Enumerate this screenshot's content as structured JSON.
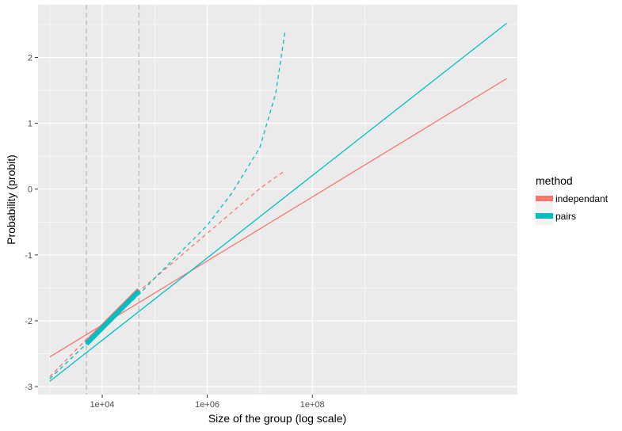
{
  "chart_data": {
    "type": "line",
    "title": "",
    "xlabel": "Size of the group (log scale)",
    "ylabel": "Probability (probit)",
    "x_scale": "log10",
    "xlim": [
      600,
      800000000000
    ],
    "ylim": [
      -3.12,
      2.8
    ],
    "x_ticks": [
      10000,
      1000000,
      100000000
    ],
    "x_tick_labels": [
      "1e+04",
      "1e+06",
      "1e+08"
    ],
    "y_ticks": [
      -3,
      -2,
      -1,
      0,
      1,
      2
    ],
    "y_tick_labels": [
      "-3",
      "-2",
      "-1",
      "0",
      "1",
      "2"
    ],
    "grid": true,
    "vlines": [
      5000,
      50000
    ],
    "legend": {
      "title": "method",
      "position": "right"
    },
    "colors": {
      "independant": "#F8766D",
      "pairs": "#00BFC4",
      "vline": "#bdbdbd",
      "panel": "#ebebeb",
      "grid": "#ffffff"
    },
    "series": [
      {
        "name": "independant",
        "style": "solid",
        "points": [
          [
            1000,
            -2.55
          ],
          [
            500000000000,
            1.68
          ]
        ]
      },
      {
        "name": "pairs",
        "style": "solid",
        "points": [
          [
            1000,
            -2.92
          ],
          [
            500000000000,
            2.52
          ]
        ]
      },
      {
        "name": "independant",
        "style": "dashed",
        "points": [
          [
            1000,
            -2.85
          ],
          [
            5000,
            -2.28
          ],
          [
            10000,
            -2.07
          ],
          [
            50000,
            -1.55
          ],
          [
            100000,
            -1.35
          ],
          [
            1000000,
            -0.67
          ],
          [
            10000000,
            0.01
          ],
          [
            30000000,
            0.28
          ]
        ]
      },
      {
        "name": "pairs",
        "style": "dashed",
        "points": [
          [
            1000,
            -2.88
          ],
          [
            5000,
            -2.35
          ],
          [
            10000,
            -2.12
          ],
          [
            50000,
            -1.6
          ],
          [
            100000,
            -1.35
          ],
          [
            1000000,
            -0.55
          ],
          [
            3000000,
            -0.05
          ],
          [
            10000000,
            0.63
          ],
          [
            20000000,
            1.45
          ],
          [
            30000000,
            2.38
          ]
        ]
      },
      {
        "name": "independant",
        "style": "thick",
        "points": [
          [
            5000,
            -2.33
          ],
          [
            50000,
            -1.53
          ]
        ]
      },
      {
        "name": "pairs",
        "style": "thick",
        "points": [
          [
            5000,
            -2.35
          ],
          [
            50000,
            -1.55
          ]
        ]
      }
    ]
  }
}
